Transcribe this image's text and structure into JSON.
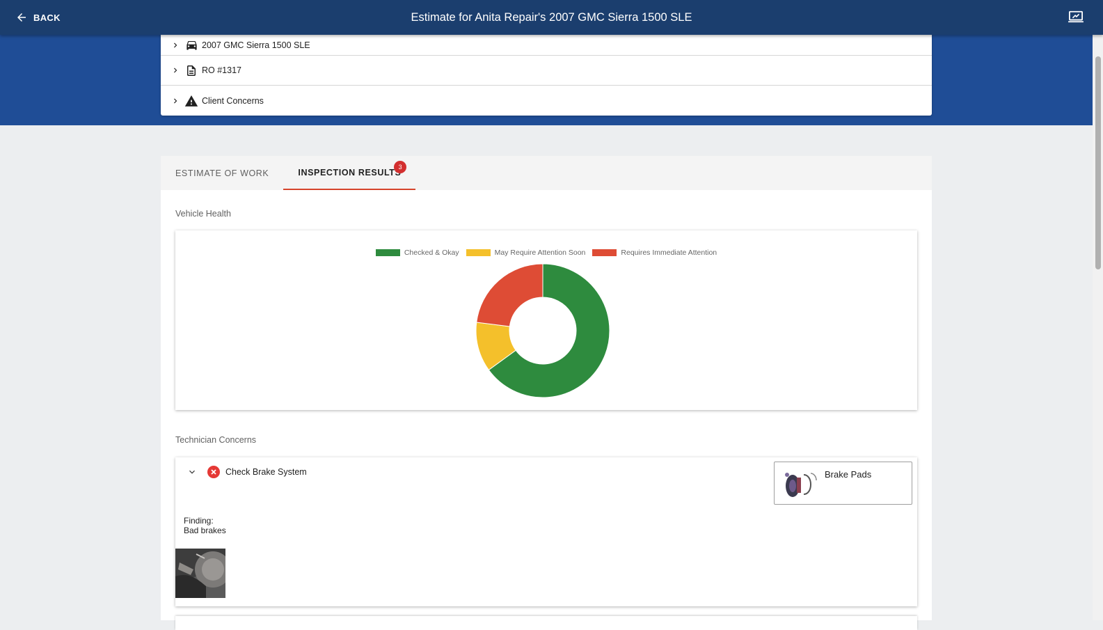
{
  "header": {
    "back_label": "BACK",
    "title": "Estimate for Anita Repair's 2007 GMC Sierra 1500 SLE",
    "icons": {
      "back": "arrow-left-icon",
      "present": "screen-share-icon"
    }
  },
  "info_rows": [
    {
      "label": "2007 GMC Sierra 1500 SLE",
      "icon": "car-icon"
    },
    {
      "label": "RO #1317",
      "icon": "document-icon"
    },
    {
      "label": "Client Concerns",
      "icon": "warning-icon"
    }
  ],
  "tabs": [
    {
      "label": "ESTIMATE OF WORK",
      "active": false
    },
    {
      "label": "INSPECTION RESULTS",
      "active": true,
      "badge": "3"
    }
  ],
  "vehicle_health": {
    "section_label": "Vehicle Health"
  },
  "chart_data": {
    "type": "pie",
    "donut": true,
    "legend": [
      {
        "name": "Checked & Okay",
        "color": "#2e8b3e"
      },
      {
        "name": "May Require Attention Soon",
        "color": "#f4c02b"
      },
      {
        "name": "Requires Immediate Attention",
        "color": "#de4c35"
      }
    ],
    "values": [
      {
        "name": "Checked & Okay",
        "value": 0.65
      },
      {
        "name": "May Require Attention Soon",
        "value": 0.12
      },
      {
        "name": "Requires Immediate Attention",
        "value": 0.23
      }
    ],
    "legend_placement": "top-center"
  },
  "technician_concerns": {
    "section_label": "Technician Concerns",
    "items": [
      {
        "title": "Check Brake System",
        "status": "requires-immediate-attention",
        "part_label": "Brake Pads",
        "finding_label": "Finding:",
        "finding_text": "Bad brakes"
      }
    ]
  }
}
